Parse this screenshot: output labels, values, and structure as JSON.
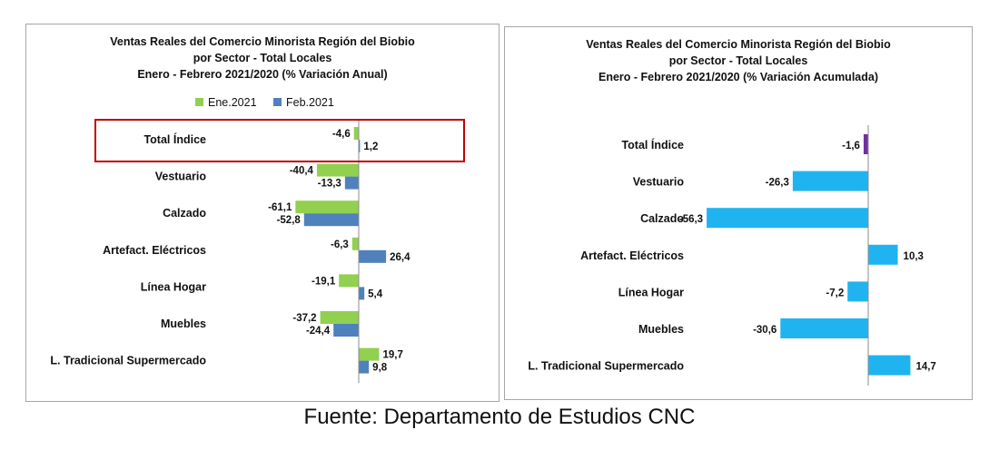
{
  "chart_data": [
    {
      "type": "bar",
      "orientation": "horizontal",
      "title": [
        "Ventas Reales del Comercio Minorista  Región del Biobio",
        "por Sector - Total Locales",
        "Enero - Febrero 2021/2020 (% Variación Anual)"
      ],
      "categories": [
        "Total Índice",
        "Vestuario",
        "Calzado",
        "Artefact. Eléctricos",
        "Línea Hogar",
        "Muebles",
        "L. Tradicional Supermercado"
      ],
      "series": [
        {
          "name": "Ene.2021",
          "color": "#92d050",
          "values": [
            -4.6,
            -40.4,
            -61.1,
            -6.3,
            -19.1,
            -37.2,
            19.7
          ],
          "labels": [
            "-4,6",
            "-40,4",
            "-61,1",
            "-6,3",
            "-19,1",
            "-37,2",
            "19,7"
          ]
        },
        {
          "name": "Feb.2021",
          "color": "#4f81bd",
          "values": [
            1.2,
            -13.3,
            -52.8,
            26.4,
            5.4,
            -24.4,
            9.8
          ],
          "labels": [
            "1,2",
            "-13,3",
            "-52,8",
            "26,4",
            "5,4",
            "-24,4",
            "9,8"
          ]
        }
      ],
      "xlim": [
        -70,
        70
      ],
      "legend": "top",
      "grid": false,
      "highlight_category": "Total Índice",
      "highlight_color": "#c00000"
    },
    {
      "type": "bar",
      "orientation": "horizontal",
      "title": [
        "Ventas Reales del Comercio Minorista Región del Biobio",
        "por Sector - Total Locales",
        "Enero - Febrero 2021/2020  (% Variación Acumulada)"
      ],
      "categories": [
        "Total Índice",
        "Vestuario",
        "Calzado",
        "Artefact. Eléctricos",
        "Línea Hogar",
        "Muebles",
        "L. Tradicional Supermercado"
      ],
      "values": [
        -1.6,
        -26.3,
        -56.3,
        10.3,
        -7.2,
        -30.6,
        14.7
      ],
      "labels": [
        "-1,6",
        "-26,3",
        "-56,3",
        "10,3",
        "-7,2",
        "-30,6",
        "14,7"
      ],
      "colors": [
        "#7030a0",
        "#1fb4f0",
        "#1fb4f0",
        "#1fb4f0",
        "#1fb4f0",
        "#1fb4f0",
        "#1fb4f0"
      ],
      "xlim": [
        -60,
        60
      ],
      "legend": "none",
      "grid": false
    }
  ],
  "footer": "Fuente: Departamento de Estudios CNC"
}
